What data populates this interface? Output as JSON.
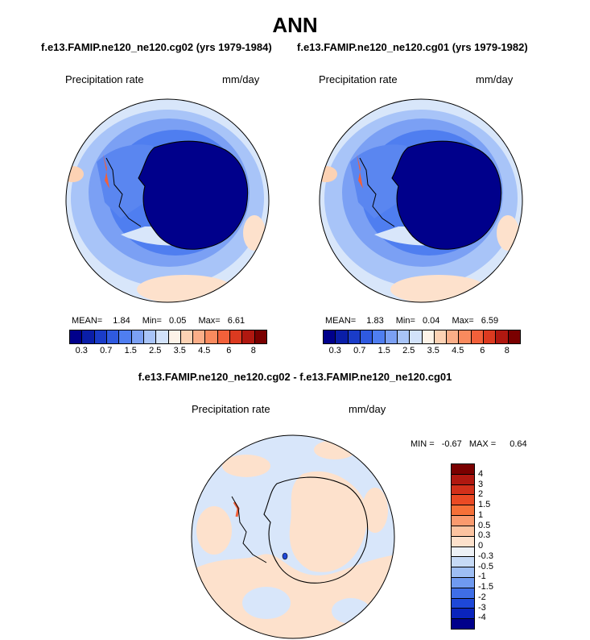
{
  "title": "ANN",
  "left_case": "f.e13.FAMIP.ne120_ne120.cg02 (yrs 1979-1984)",
  "right_case": "f.e13.FAMIP.ne120_ne120.cg01 (yrs 1979-1982)",
  "diff_title": "f.e13.FAMIP.ne120_ne120.cg02 - f.e13.FAMIP.ne120_ne120.cg01",
  "panels": {
    "left": {
      "variable": "Precipitation rate",
      "units": "mm/day",
      "mean_label": "MEAN=",
      "mean": "1.84",
      "min_label": "Min=",
      "min": "0.05",
      "max_label": "Max=",
      "max": "6.61"
    },
    "right": {
      "variable": "Precipitation rate",
      "units": "mm/day",
      "mean_label": "MEAN=",
      "mean": "1.83",
      "min_label": "Min=",
      "min": "0.04",
      "max_label": "Max=",
      "max": "6.59"
    },
    "diff": {
      "variable": "Precipitation rate",
      "units": "mm/day",
      "min_label": "MIN =",
      "min": "-0.67",
      "max_label": "MAX =",
      "max": "0.64"
    }
  },
  "abs_colorbar": {
    "colors": [
      "#00008b",
      "#0a1ea8",
      "#1a3cc8",
      "#2f5ae0",
      "#4f7ef0",
      "#7ba0f4",
      "#a8c4f8",
      "#d2e2fa",
      "#fdf3e8",
      "#fcd2b4",
      "#fbae88",
      "#f98a5e",
      "#f2603a",
      "#dc3a20",
      "#b01810",
      "#7a0000"
    ],
    "tick_labels": [
      "0.3",
      "0.7",
      "1.5",
      "2.5",
      "3.5",
      "4.5",
      "6",
      "8"
    ]
  },
  "diff_colorbar": {
    "colors": [
      "#7a0000",
      "#b01810",
      "#d2301a",
      "#ea4a24",
      "#f67038",
      "#fa9a6e",
      "#fcc3a0",
      "#fde1cc",
      "#edf1f6",
      "#c6daf6",
      "#9ebef4",
      "#6f9af0",
      "#3f6ee6",
      "#1e48d8",
      "#0a24bc",
      "#00008b"
    ],
    "tick_labels": [
      "4",
      "3",
      "2",
      "1.5",
      "1",
      "0.5",
      "0.3",
      "0",
      "-0.3",
      "-0.5",
      "-1",
      "-1.5",
      "-2",
      "-3",
      "-4"
    ]
  }
}
